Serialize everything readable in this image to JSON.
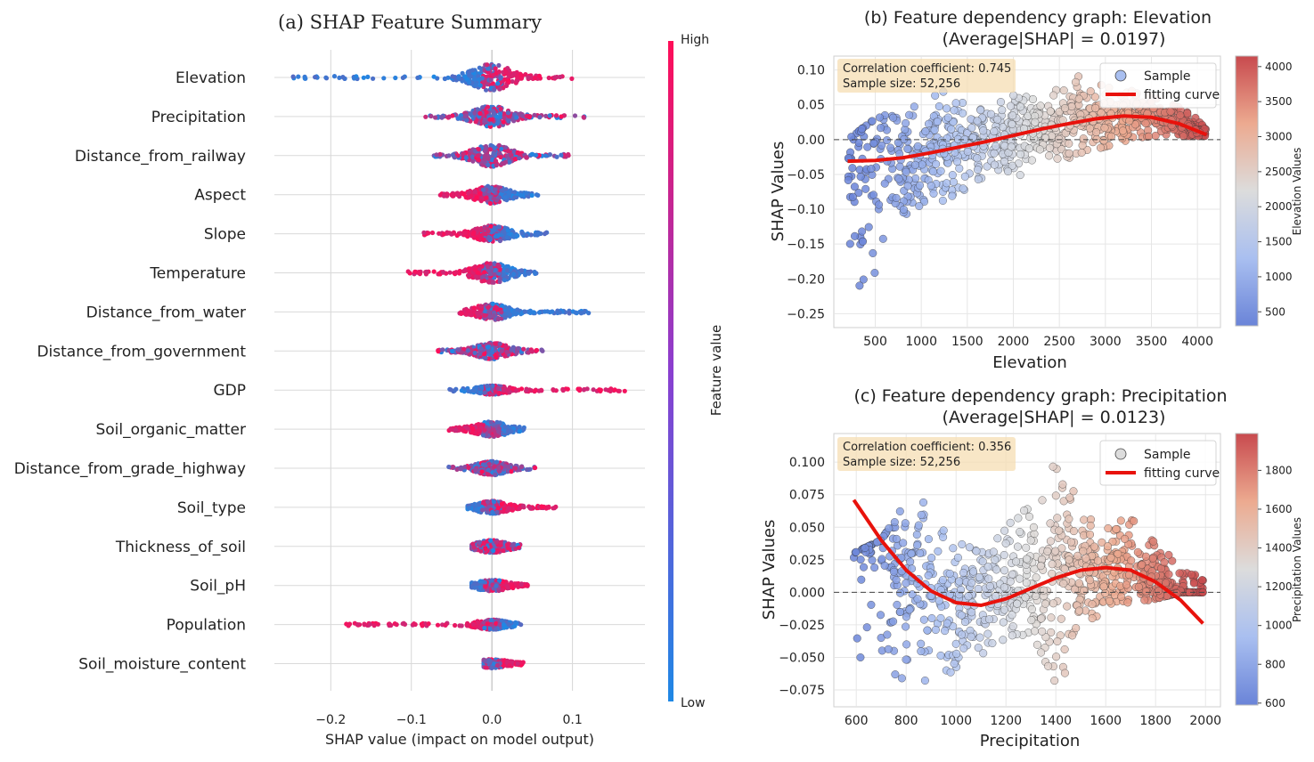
{
  "chart_data": [
    {
      "id": "a",
      "type": "scatter",
      "title": "(a) SHAP Feature Summary",
      "xlabel": "SHAP value (impact on model output)",
      "xlim": [
        -0.27,
        0.19
      ],
      "xticks": [
        -0.2,
        -0.1,
        0.0,
        0.1
      ],
      "xtick_labels": [
        "−0.2",
        "−0.1",
        "0.0",
        "0.1"
      ],
      "grid": true,
      "colorbar": {
        "label": "Feature value",
        "high": "High",
        "low": "Low",
        "low_color": "#1e88e5",
        "high_color": "#ff0d57"
      },
      "features": [
        {
          "name": "Elevation",
          "min": -0.26,
          "max": 0.11,
          "spread": 1.0,
          "hi_side": 1
        },
        {
          "name": "Precipitation",
          "min": -0.085,
          "max": 0.115,
          "spread": 0.75,
          "hi_side": 0
        },
        {
          "name": "Distance_from_railway",
          "min": -0.075,
          "max": 0.105,
          "spread": 0.8,
          "hi_side": 0
        },
        {
          "name": "Aspect",
          "min": -0.065,
          "max": 0.06,
          "spread": 0.6,
          "hi_side": -1
        },
        {
          "name": "Slope",
          "min": -0.085,
          "max": 0.07,
          "spread": 0.55,
          "hi_side": -1
        },
        {
          "name": "Temperature",
          "min": -0.105,
          "max": 0.055,
          "spread": 0.7,
          "hi_side": -1
        },
        {
          "name": "Distance_from_water",
          "min": -0.04,
          "max": 0.12,
          "spread": 0.55,
          "hi_side": -1
        },
        {
          "name": "Distance_from_government",
          "min": -0.07,
          "max": 0.065,
          "spread": 0.55,
          "hi_side": 0
        },
        {
          "name": "GDP",
          "min": -0.055,
          "max": 0.165,
          "spread": 0.25,
          "hi_side": 1
        },
        {
          "name": "Soil_organic_matter",
          "min": -0.055,
          "max": 0.04,
          "spread": 0.5,
          "hi_side": -1
        },
        {
          "name": "Distance_from_grade_highway",
          "min": -0.055,
          "max": 0.055,
          "spread": 0.45,
          "hi_side": 0
        },
        {
          "name": "Soil_type",
          "min": -0.03,
          "max": 0.08,
          "spread": 0.4,
          "hi_side": 1
        },
        {
          "name": "Thickness_of_soil",
          "min": -0.025,
          "max": 0.035,
          "spread": 0.4,
          "hi_side": 0
        },
        {
          "name": "Soil_pH",
          "min": -0.025,
          "max": 0.045,
          "spread": 0.35,
          "hi_side": 1
        },
        {
          "name": "Population",
          "min": -0.19,
          "max": 0.04,
          "spread": 0.3,
          "hi_side": -1
        },
        {
          "name": "Soil_moisture_content",
          "min": -0.01,
          "max": 0.04,
          "spread": 0.25,
          "hi_side": 1
        }
      ]
    },
    {
      "id": "b",
      "type": "scatter",
      "title_line1": "(b) Feature dependency graph: Elevation",
      "title_line2": "(Average|SHAP| = 0.0197)",
      "xlabel": "Elevation",
      "ylabel": "SHAP Values",
      "xlim": [
        50,
        4250
      ],
      "ylim": [
        -0.27,
        0.12
      ],
      "xticks": [
        500,
        1000,
        1500,
        2000,
        2500,
        3000,
        3500,
        4000
      ],
      "yticks": [
        0.1,
        0.05,
        0.0,
        -0.05,
        -0.1,
        -0.15,
        -0.2,
        -0.25
      ],
      "ytick_labels": [
        "0.10",
        "0.05",
        "0.00",
        "−0.05",
        "−0.10",
        "−0.15",
        "−0.20",
        "−0.25"
      ],
      "grid": true,
      "annotation": {
        "line1": "Correlation coefficient: 0.745",
        "line2_label": "Sample size:",
        "line2_value": "52,256"
      },
      "legend": {
        "position": "top-right",
        "sample": "Sample",
        "fit": "fitting curve"
      },
      "colorbar": {
        "label": "Elevation Values",
        "range": [
          300,
          4150
        ],
        "ticks": [
          500,
          1000,
          1500,
          2000,
          2500,
          3000,
          3500,
          4000
        ]
      },
      "fitting_curve": {
        "x": [
          200,
          500,
          800,
          1100,
          1400,
          1700,
          2000,
          2300,
          2600,
          2900,
          3200,
          3500,
          3800,
          4100
        ],
        "y": [
          -0.031,
          -0.03,
          -0.026,
          -0.019,
          -0.011,
          -0.003,
          0.006,
          0.015,
          0.023,
          0.03,
          0.034,
          0.032,
          0.023,
          0.007
        ]
      },
      "cloud": {
        "x": [
          200,
          400,
          600,
          900,
          1200,
          1500,
          1800,
          2100,
          2400,
          2700,
          3000,
          3300,
          3600,
          3900,
          4100
        ],
        "lo": [
          -0.16,
          -0.24,
          -0.15,
          -0.11,
          -0.09,
          -0.07,
          -0.06,
          -0.05,
          -0.04,
          -0.02,
          -0.01,
          0.0,
          0.005,
          0.005,
          0.005
        ],
        "hi": [
          0.0,
          0.02,
          0.04,
          0.05,
          0.07,
          0.06,
          0.05,
          0.07,
          0.085,
          0.1,
          0.08,
          0.07,
          0.06,
          0.04,
          0.02
        ]
      }
    },
    {
      "id": "c",
      "type": "scatter",
      "title_line1": "(c) Feature dependency graph: Precipitation",
      "title_line2": "(Average|SHAP| = 0.0123)",
      "xlabel": "Precipitation",
      "ylabel": "SHAP Values",
      "xlim": [
        510,
        2060
      ],
      "ylim": [
        -0.088,
        0.122
      ],
      "xticks": [
        600,
        800,
        1000,
        1200,
        1400,
        1600,
        1800,
        2000
      ],
      "yticks": [
        0.1,
        0.075,
        0.05,
        0.025,
        0.0,
        -0.025,
        -0.05,
        -0.075
      ],
      "ytick_labels": [
        "0.100",
        "0.075",
        "0.050",
        "0.025",
        "0.000",
        "−0.025",
        "−0.050",
        "−0.075"
      ],
      "grid": true,
      "annotation": {
        "line1": "Correlation coefficient: 0.356",
        "line2_label": "Sample size:",
        "line2_value": "52,256"
      },
      "legend": {
        "position": "top-right",
        "sample": "Sample",
        "fit": "fitting curve"
      },
      "colorbar": {
        "label": "Precipitation Values",
        "range": [
          590,
          1990
        ],
        "ticks": [
          600,
          800,
          1000,
          1200,
          1400,
          1600,
          1800
        ]
      },
      "fitting_curve": {
        "x": [
          590,
          700,
          800,
          900,
          1000,
          1100,
          1200,
          1300,
          1400,
          1500,
          1600,
          1700,
          1800,
          1900,
          1990
        ],
        "y": [
          0.071,
          0.04,
          0.017,
          0.001,
          -0.008,
          -0.01,
          -0.005,
          0.003,
          0.011,
          0.017,
          0.019,
          0.017,
          0.008,
          -0.006,
          -0.024
        ]
      },
      "cloud": {
        "x": [
          590,
          700,
          800,
          830,
          900,
          1000,
          1100,
          1200,
          1300,
          1400,
          1450,
          1500,
          1600,
          1700,
          1800,
          1900,
          1990
        ],
        "lo": [
          -0.05,
          -0.06,
          -0.07,
          -0.075,
          -0.075,
          -0.06,
          -0.05,
          -0.04,
          -0.03,
          -0.07,
          -0.06,
          -0.02,
          -0.02,
          -0.01,
          -0.005,
          0.0,
          0.0
        ],
        "hi": [
          0.03,
          0.04,
          0.07,
          0.1,
          0.06,
          0.04,
          0.03,
          0.05,
          0.07,
          0.1,
          0.09,
          0.06,
          0.05,
          0.06,
          0.04,
          0.02,
          0.01
        ]
      }
    }
  ]
}
